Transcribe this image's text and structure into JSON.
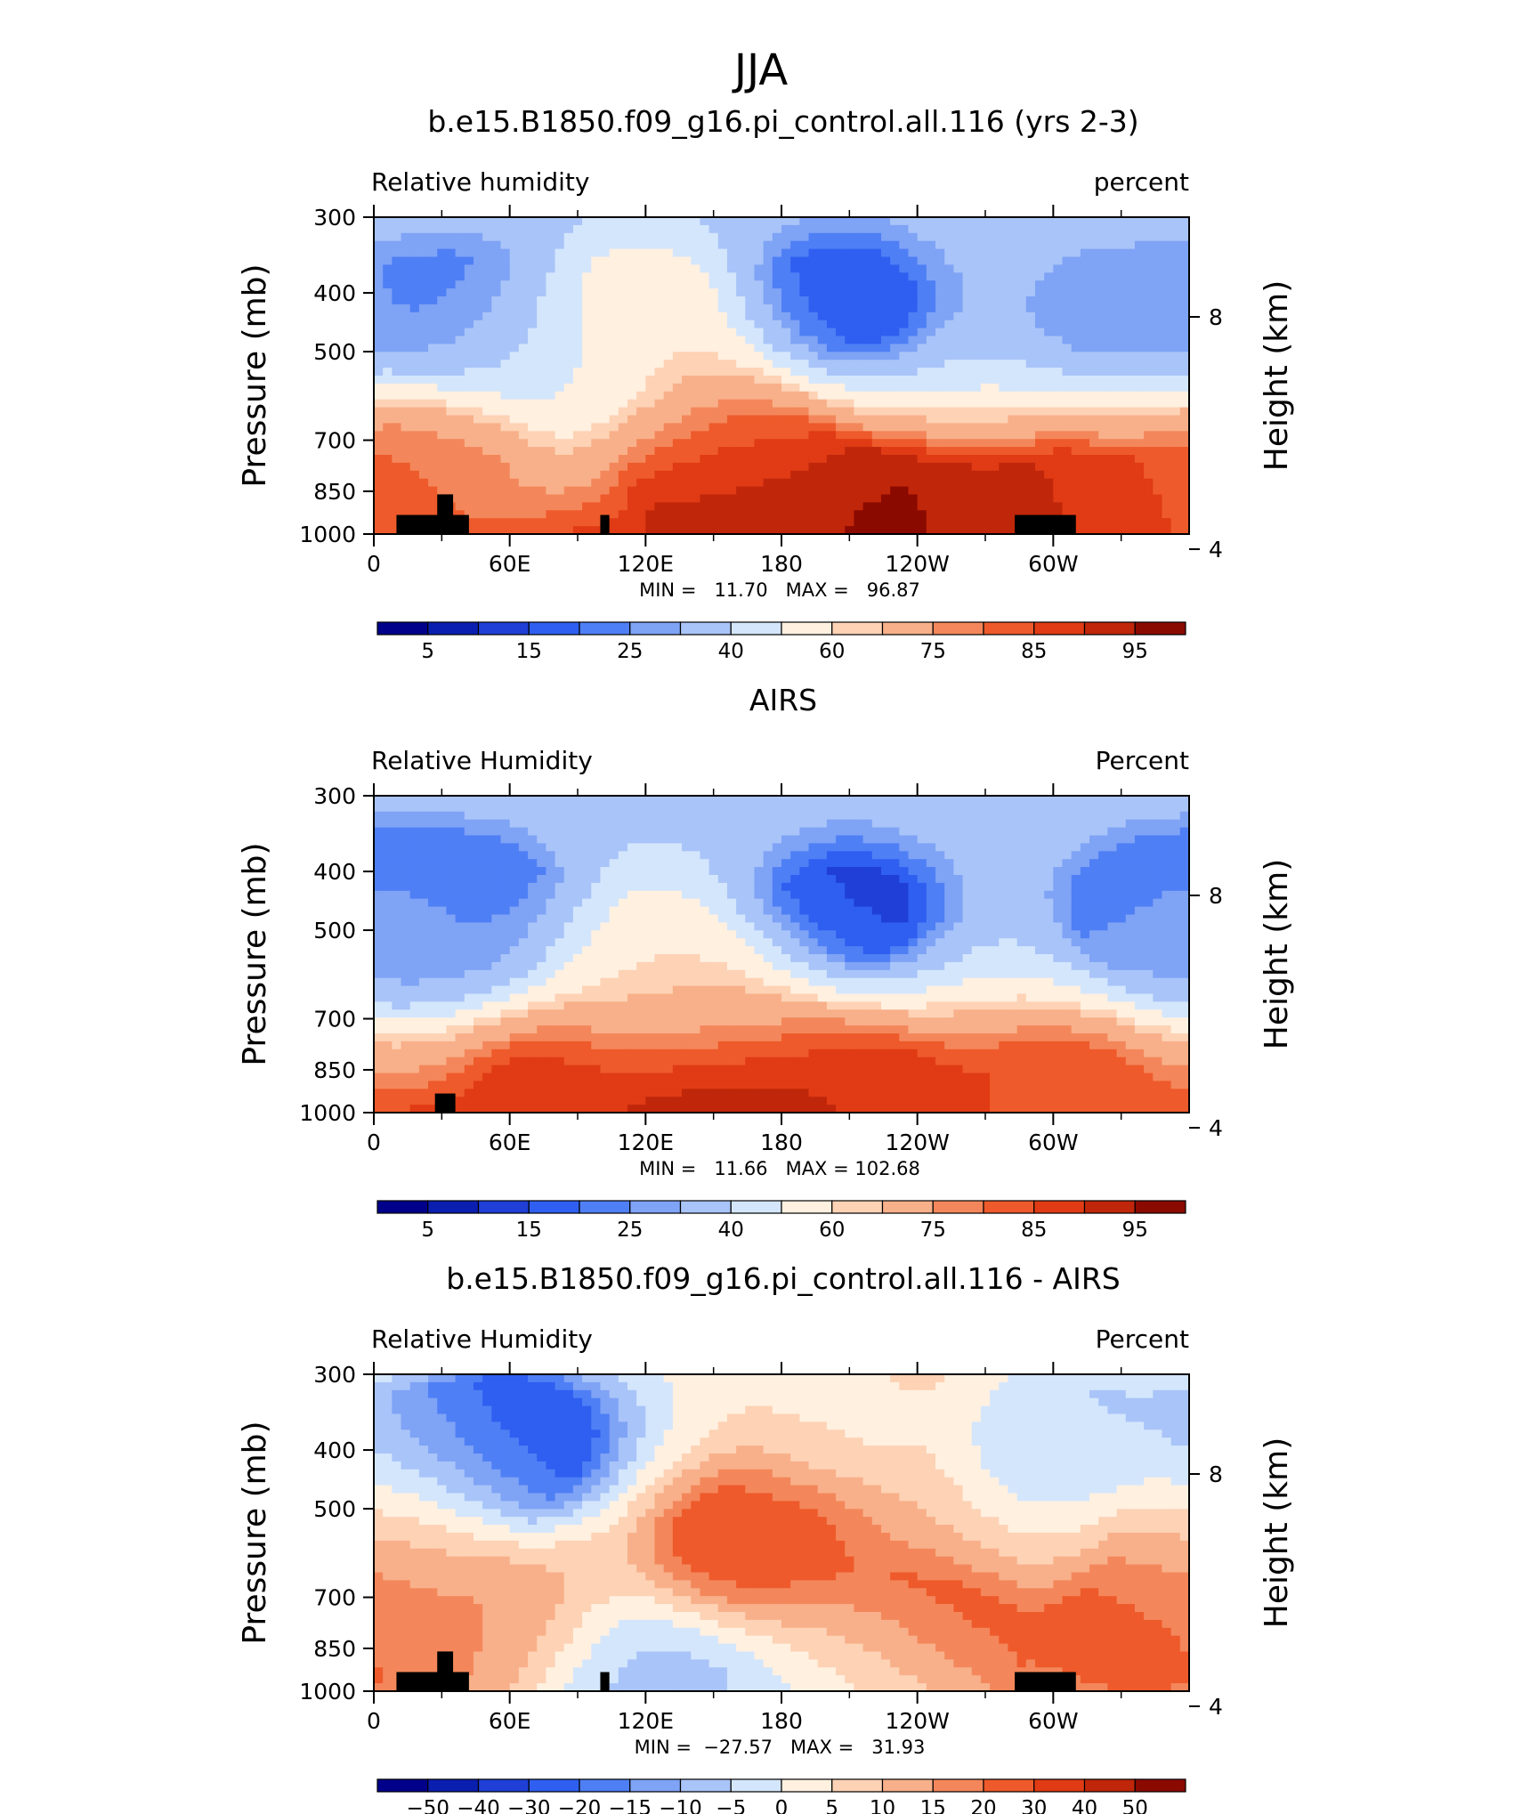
{
  "figure_title": "JJA",
  "colors": {
    "rh_levels": [
      "#00008b",
      "#0a1fb0",
      "#1f3fd6",
      "#2f5ff0",
      "#4f7ff5",
      "#7fa3f5",
      "#a9c4f8",
      "#d4e6fc",
      "#fff0e0",
      "#fdd2b5",
      "#f8b08a",
      "#f3875b",
      "#ee5a2b",
      "#e03b14",
      "#c0260a",
      "#8b0a00"
    ],
    "diff_levels": [
      "#00008b",
      "#0a1fb0",
      "#1f3fd6",
      "#2f5ff0",
      "#4f7ff5",
      "#7fa3f5",
      "#a9c4f8",
      "#d4e6fc",
      "#fff0e0",
      "#fdd2b5",
      "#f8b08a",
      "#f3875b",
      "#ee5a2b",
      "#e03b14",
      "#c0260a",
      "#8b0a00"
    ],
    "topography": "#000000"
  },
  "chart_data": [
    {
      "type": "contour",
      "title": "b.e15.B1850.f09_g16.pi_control.all.116 (yrs 2-3)",
      "left_label": "Relative humidity",
      "right_label": "percent",
      "ylabel": "Pressure (mb)",
      "ylabel_right": "Height (km)",
      "x_ticks": [
        "0",
        "60E",
        "120E",
        "180",
        "120W",
        "60W"
      ],
      "x_range_deg": [
        0,
        360
      ],
      "y_ticks": [
        "300",
        "400",
        "500",
        "700",
        "850",
        "1000"
      ],
      "y_right_ticks": [
        "8",
        "4"
      ],
      "ylim": [
        1000,
        300
      ],
      "stats_text": "MIN =   11.70   MAX =   96.87",
      "min": 11.7,
      "max": 96.87,
      "colorbar_labels": [
        "5",
        "15",
        "25",
        "40",
        "60",
        "75",
        "85",
        "95"
      ],
      "colorbar_levels": [
        5,
        10,
        15,
        20,
        25,
        30,
        40,
        50,
        60,
        65,
        75,
        80,
        85,
        90,
        95
      ],
      "features": [
        {
          "lon": 160,
          "p": 930,
          "value": 95
        },
        {
          "lon": 225,
          "p": 930,
          "value": 96
        },
        {
          "lon": 305,
          "p": 900,
          "value": 90
        },
        {
          "lon": 155,
          "p": 700,
          "value": 82
        },
        {
          "lon": 25,
          "p": 780,
          "value": 80
        },
        {
          "lon": 205,
          "p": 410,
          "value": 15
        },
        {
          "lon": 40,
          "p": 420,
          "value": 22
        },
        {
          "lon": 325,
          "p": 420,
          "value": 28
        },
        {
          "lon": 90,
          "p": 520,
          "value": 45
        },
        {
          "lon": 120,
          "p": 450,
          "value": 65
        }
      ],
      "topography_blocks": [
        {
          "lon_start": 10,
          "lon_end": 42,
          "p_top": 930
        },
        {
          "lon_start": 28,
          "lon_end": 35,
          "p_top": 860
        },
        {
          "lon_start": 100,
          "lon_end": 104,
          "p_top": 930
        },
        {
          "lon_start": 283,
          "lon_end": 310,
          "p_top": 930
        }
      ]
    },
    {
      "type": "contour",
      "title": "AIRS",
      "left_label": "Relative Humidity",
      "right_label": "Percent",
      "ylabel": "Pressure (mb)",
      "ylabel_right": "Height (km)",
      "x_ticks": [
        "0",
        "60E",
        "120E",
        "180",
        "120W",
        "60W"
      ],
      "x_range_deg": [
        0,
        360
      ],
      "y_ticks": [
        "300",
        "400",
        "500",
        "700",
        "850",
        "1000"
      ],
      "y_right_ticks": [
        "8",
        "4"
      ],
      "ylim": [
        1000,
        300
      ],
      "stats_text": "MIN =   11.66   MAX = 102.68",
      "min": 11.66,
      "max": 102.68,
      "colorbar_labels": [
        "5",
        "15",
        "25",
        "40",
        "60",
        "75",
        "85",
        "95"
      ],
      "colorbar_levels": [
        5,
        10,
        15,
        20,
        25,
        30,
        40,
        50,
        60,
        65,
        75,
        80,
        85,
        90,
        95
      ],
      "features": [
        {
          "lon": 155,
          "p": 935,
          "value": 100
        },
        {
          "lon": 80,
          "p": 935,
          "value": 88
        },
        {
          "lon": 215,
          "p": 935,
          "value": 88
        },
        {
          "lon": 305,
          "p": 920,
          "value": 84
        },
        {
          "lon": 210,
          "p": 460,
          "value": 14
        },
        {
          "lon": 45,
          "p": 450,
          "value": 18
        },
        {
          "lon": 345,
          "p": 450,
          "value": 20
        },
        {
          "lon": 10,
          "p": 500,
          "value": 35
        },
        {
          "lon": 120,
          "p": 550,
          "value": 58
        },
        {
          "lon": 150,
          "p": 700,
          "value": 68
        }
      ],
      "topography_blocks": [
        {
          "lon_start": 27,
          "lon_end": 36,
          "p_top": 930
        }
      ]
    },
    {
      "type": "contour",
      "title": "b.e15.B1850.f09_g16.pi_control.all.116 - AIRS",
      "left_label": "Relative Humidity",
      "right_label": "Percent",
      "ylabel": "Pressure (mb)",
      "ylabel_right": "Height (km)",
      "x_ticks": [
        "0",
        "60E",
        "120E",
        "180",
        "120W",
        "60W"
      ],
      "x_range_deg": [
        0,
        360
      ],
      "y_ticks": [
        "300",
        "400",
        "500",
        "700",
        "850",
        "1000"
      ],
      "y_right_ticks": [
        "8",
        "4"
      ],
      "ylim": [
        1000,
        300
      ],
      "stats_text": "MIN =  −27.57   MAX =   31.93",
      "min": -27.57,
      "max": 31.93,
      "colorbar_labels": [
        "−50",
        "−40",
        "−30",
        "−20",
        "−15",
        "−10",
        "−5",
        "0",
        "5",
        "10",
        "15",
        "20",
        "30",
        "40",
        "50"
      ],
      "colorbar_levels": [
        -50,
        -40,
        -30,
        -20,
        -15,
        -10,
        -5,
        0,
        5,
        10,
        15,
        20,
        30,
        40,
        50
      ],
      "features": [
        {
          "lon": 165,
          "p": 560,
          "value": 25
        },
        {
          "lon": 240,
          "p": 820,
          "value": 28
        },
        {
          "lon": 335,
          "p": 820,
          "value": 22
        },
        {
          "lon": 10,
          "p": 560,
          "value": 14
        },
        {
          "lon": 50,
          "p": 780,
          "value": 16
        },
        {
          "lon": 62,
          "p": 380,
          "value": -28
        },
        {
          "lon": 120,
          "p": 940,
          "value": -8
        },
        {
          "lon": 220,
          "p": 940,
          "value": -6
        },
        {
          "lon": 25,
          "p": 420,
          "value": -6
        },
        {
          "lon": 310,
          "p": 380,
          "value": -5
        },
        {
          "lon": 200,
          "p": 350,
          "value": 4
        }
      ],
      "topography_blocks": [
        {
          "lon_start": 10,
          "lon_end": 42,
          "p_top": 930
        },
        {
          "lon_start": 28,
          "lon_end": 35,
          "p_top": 860
        },
        {
          "lon_start": 100,
          "lon_end": 104,
          "p_top": 930
        },
        {
          "lon_start": 283,
          "lon_end": 310,
          "p_top": 930
        }
      ]
    }
  ]
}
